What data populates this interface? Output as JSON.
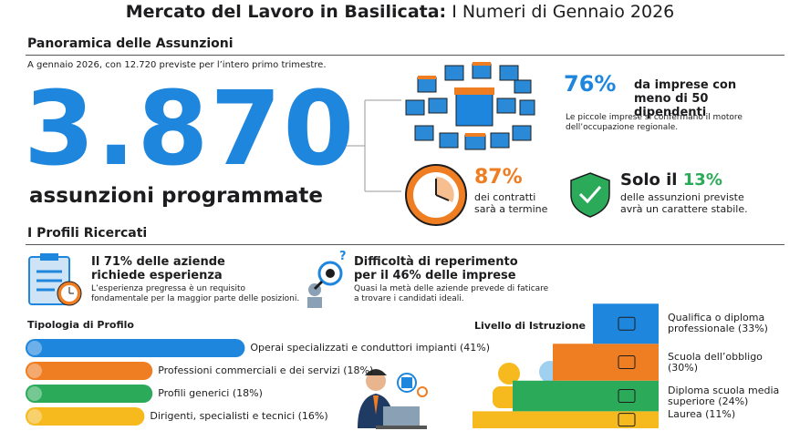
{
  "header": {
    "title_bold": "Mercato del Lavoro in Basilicata:",
    "title_light": "I Numeri di Gennaio 2026"
  },
  "overview": {
    "heading": "Panoramica delle Assunzioni",
    "intro": "A gennaio 2026, con 12.720 previste per l’intero primo trimestre.",
    "big_number": "3.870",
    "big_label": "assunzioni programmate",
    "small_firms": {
      "percent": "76%",
      "text": "da imprese con meno di 50 dipendenti",
      "note": "Le piccole imprese si confermano il motore dell’occupazione regionale."
    },
    "fixed_term": {
      "percent": "87%",
      "text": "dei contratti sarà a termine"
    },
    "stable": {
      "prefix": "Solo il",
      "percent": "13%",
      "text": "delle assunzioni previste avrà un carattere stabile."
    }
  },
  "profiles": {
    "heading": "I Profili Ricercati",
    "experience": {
      "title": "Il 71% delle aziende richiede esperienza",
      "note": "L’esperienza pregressa è un requisito fondamentale per la maggior parte delle posizioni."
    },
    "difficulty": {
      "title": "Difficoltà di reperimento per il 46% delle imprese",
      "note": "Quasi la metà delle aziende prevede di faticare a trovare i candidati ideali."
    }
  },
  "profile_types": {
    "title": "Tipologia di Profilo",
    "items": [
      {
        "label": "Operai specializzati e conduttori impianti (41%)",
        "value": 41,
        "color": "#1f86dd"
      },
      {
        "label": "Professioni commerciali e dei servizi (18%)",
        "value": 18,
        "color": "#ef7d22"
      },
      {
        "label": "Profili generici (18%)",
        "value": 18,
        "color": "#2bab5a"
      },
      {
        "label": "Dirigenti, specialisti e tecnici (16%)",
        "value": 16,
        "color": "#f6b91e"
      }
    ]
  },
  "education": {
    "title": "Livello di Istruzione",
    "items": [
      {
        "label": "Qualifica o diploma professionale (33%)",
        "value": 33,
        "color": "#1f86dd"
      },
      {
        "label": "Scuola dell’obbligo (30%)",
        "value": 30,
        "color": "#ef7d22"
      },
      {
        "label": "Diploma scuola media superiore (24%)",
        "value": 24,
        "color": "#2bab5a"
      },
      {
        "label": "Laurea (11%)",
        "value": 11,
        "color": "#f6b91e"
      }
    ]
  }
}
